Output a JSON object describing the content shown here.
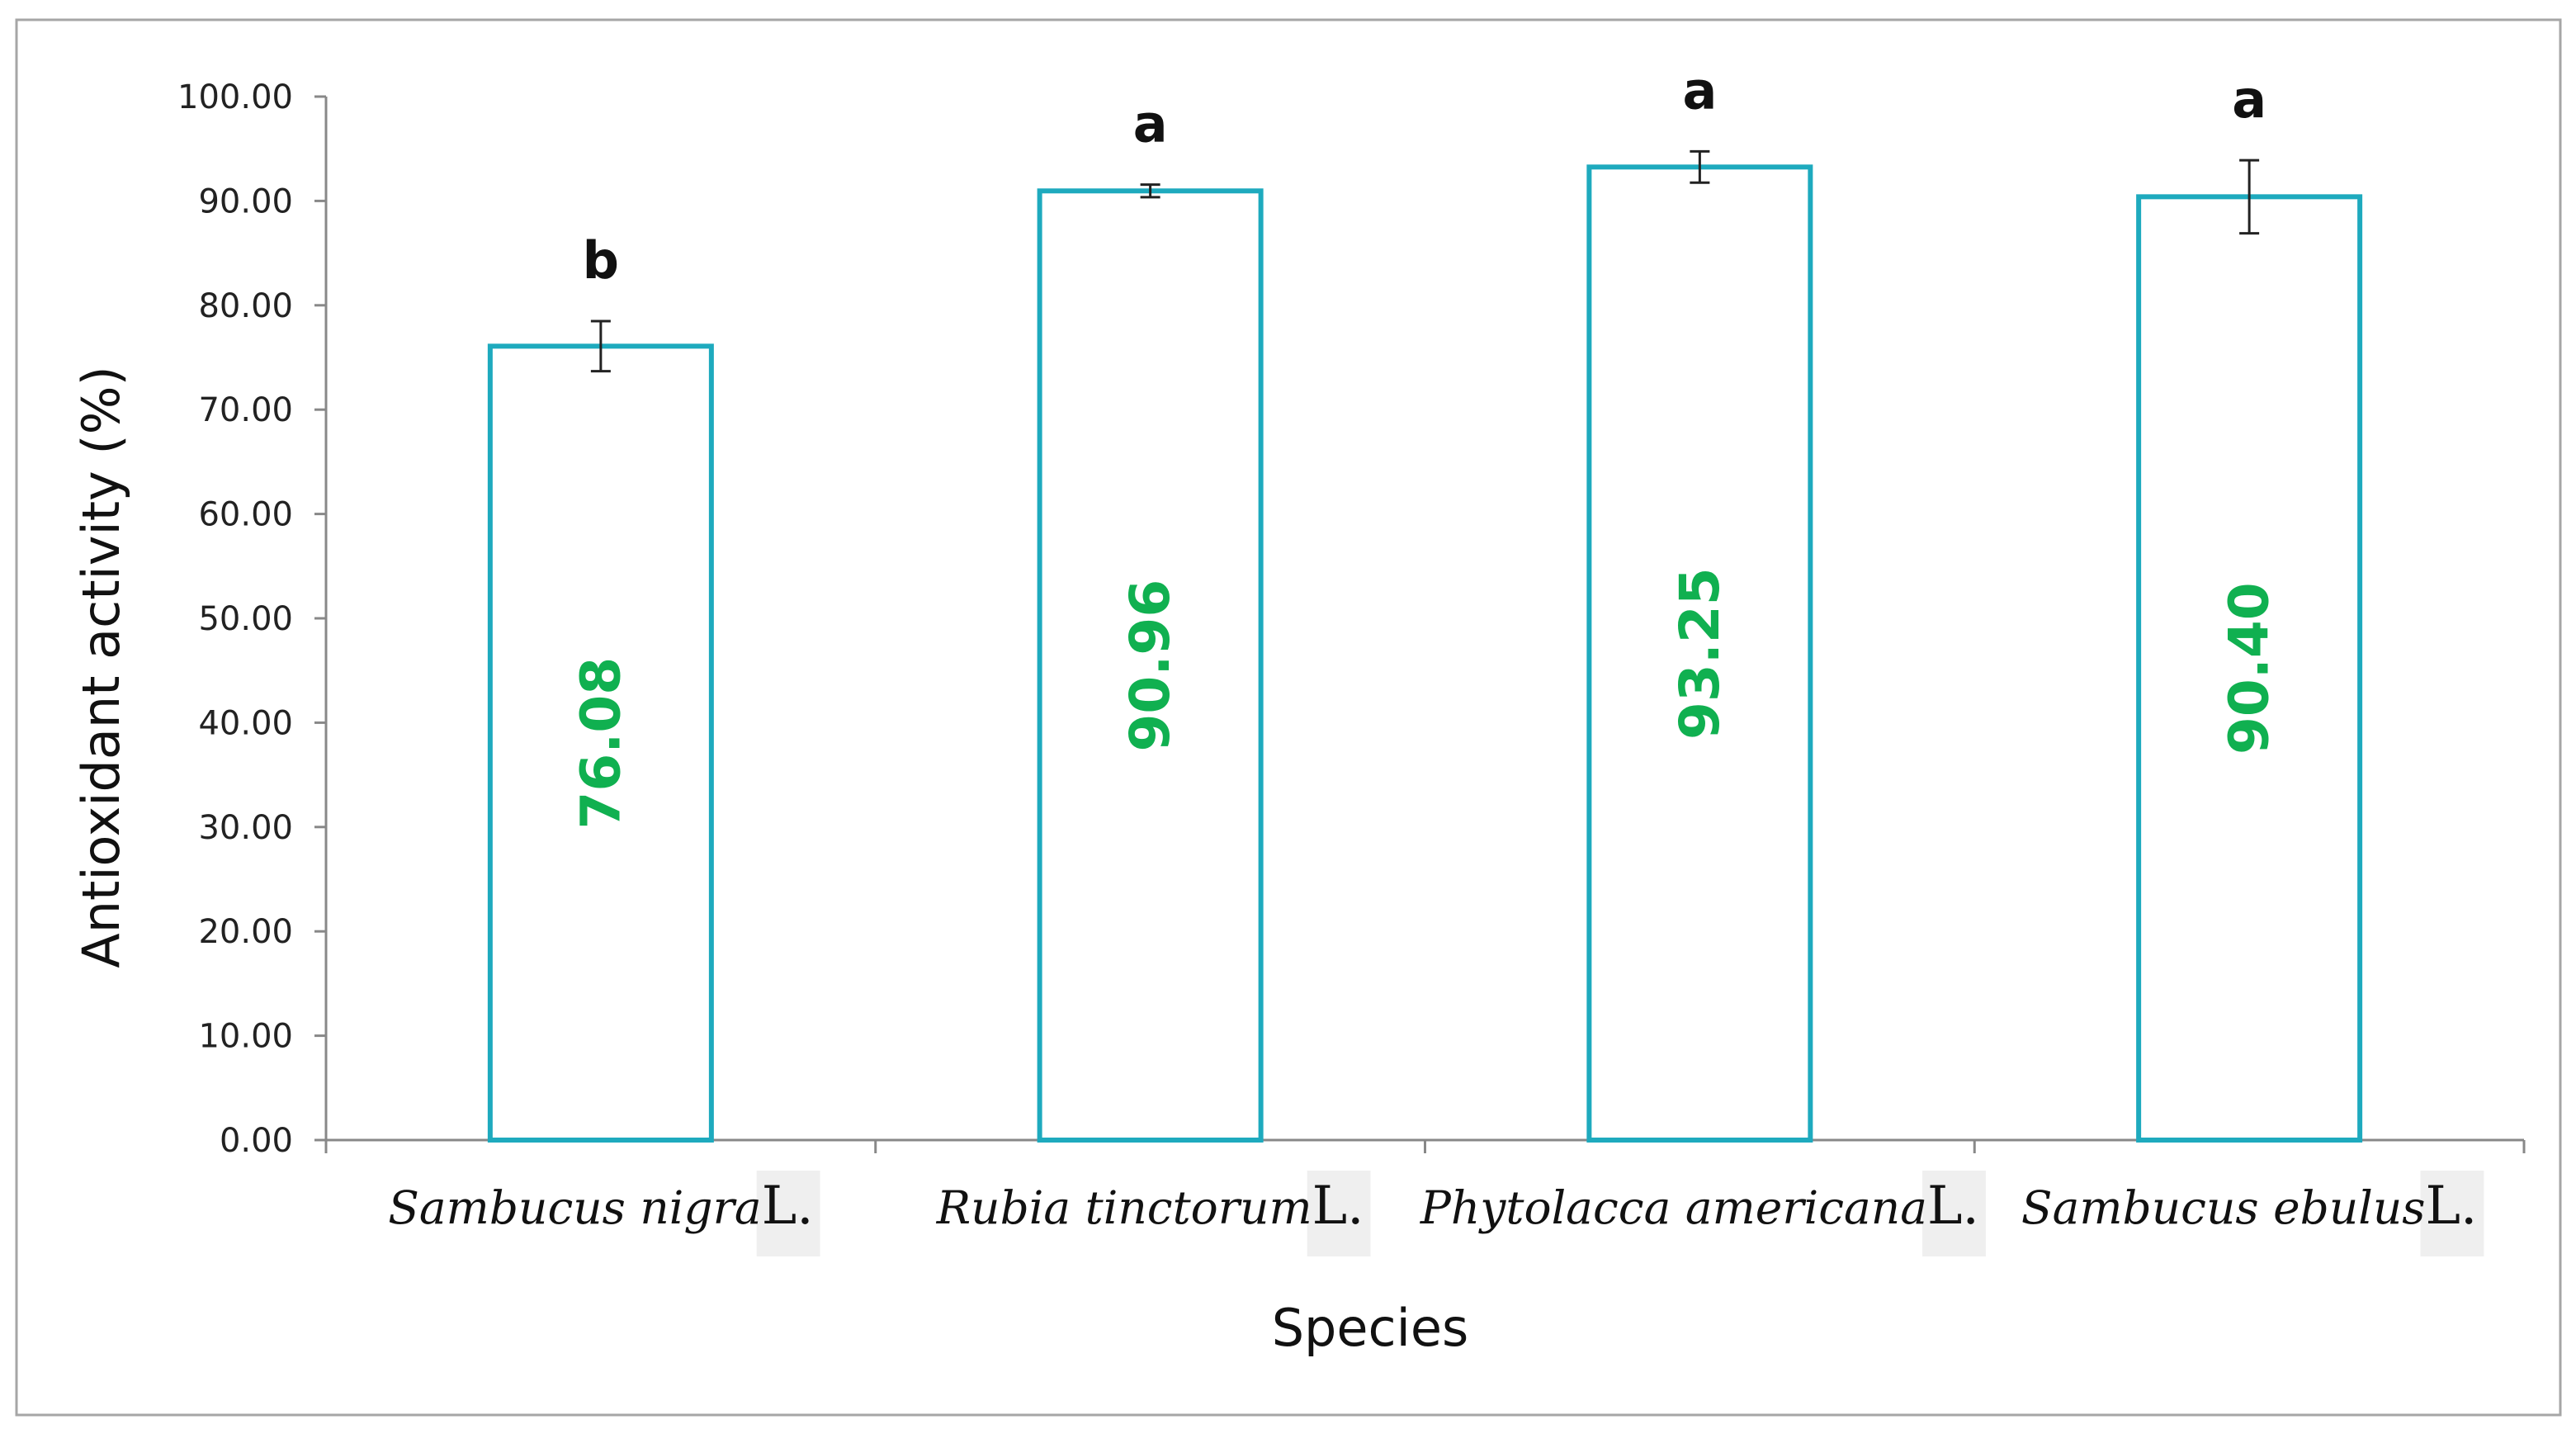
{
  "chart_data": {
    "type": "bar",
    "title": "",
    "xlabel": "Species",
    "ylabel": "Antioxidant activity  (%)",
    "ylim": [
      0,
      100
    ],
    "yticks": [
      "0.00",
      "10.00",
      "20.00",
      "30.00",
      "40.00",
      "50.00",
      "60.00",
      "70.00",
      "80.00",
      "90.00",
      "100.00"
    ],
    "grid": false,
    "legend": "none",
    "categories": [
      {
        "name": "Sambucus nigra",
        "suffix": "L."
      },
      {
        "name": "Rubia tinctorum",
        "suffix": "L."
      },
      {
        "name": "Phytolacca americana",
        "suffix": "L."
      },
      {
        "name": "Sambucus ebulus",
        "suffix": "L."
      }
    ],
    "values": [
      76.08,
      90.96,
      93.25,
      90.4
    ],
    "value_labels": [
      "76.08",
      "90.96",
      "93.25",
      "90.40"
    ],
    "error": [
      2.4,
      0.6,
      1.5,
      3.5
    ],
    "significance": [
      "b",
      "a",
      "a",
      "a"
    ]
  },
  "colors": {
    "bar_outline": "#1EAABE",
    "bar_fill": "#FFFFFF",
    "value_label": "#10B050",
    "axis": "#888888",
    "frame": "#A6A6A6",
    "suffix_highlight": "#EFEFEF"
  }
}
